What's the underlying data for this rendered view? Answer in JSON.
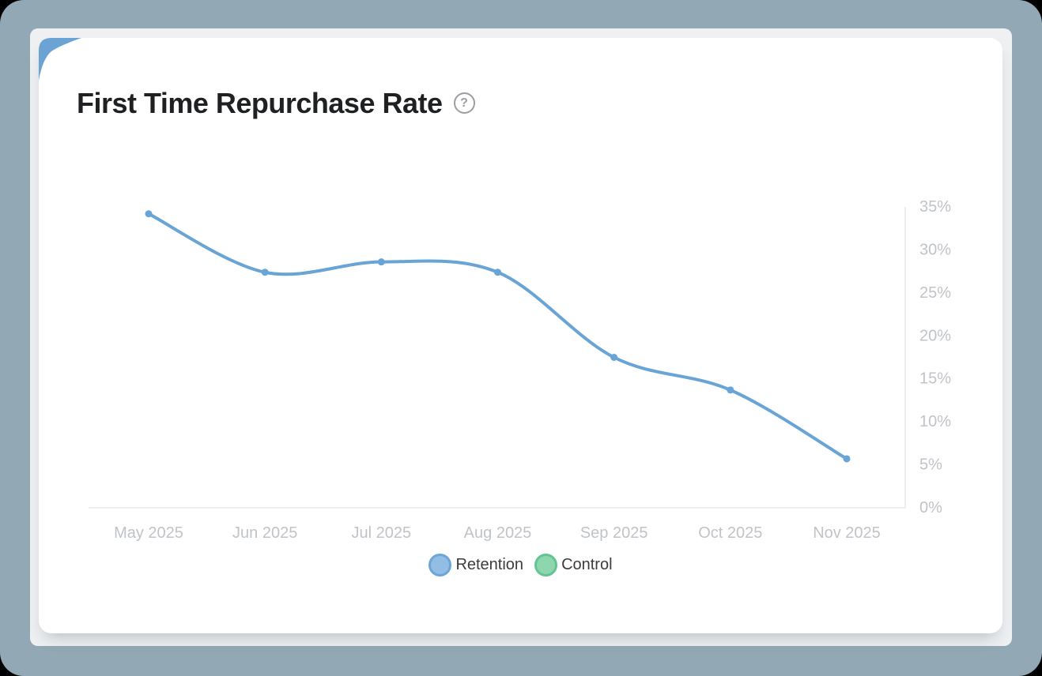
{
  "card": {
    "title": "First Time Repurchase Rate",
    "help_glyph": "?"
  },
  "colors": {
    "outer_background": "#93a8b5",
    "frame_background": "#eef0f2",
    "card_background": "#ffffff",
    "corner_fold": "#6ba4d4",
    "title_text": "#1f2022",
    "help_icon": "#9b9ea1",
    "axis_line": "#dcdcdc",
    "tick_label": "#c0c3c7",
    "legend_text": "#3a3c3e"
  },
  "chart_data": {
    "type": "line",
    "title": "First Time Repurchase Rate",
    "x": [
      "May 2025",
      "Jun 2025",
      "Jul 2025",
      "Aug 2025",
      "Sep 2025",
      "Oct 2025",
      "Nov 2025"
    ],
    "series": [
      {
        "name": "Retention",
        "color": "#68a4d5",
        "swatch_fill": "#92bde4",
        "swatch_ring": "#6ca6d8",
        "values": [
          34.2,
          27.4,
          28.6,
          27.4,
          17.5,
          13.7,
          5.7
        ],
        "visible": true
      },
      {
        "name": "Control",
        "color": "#62c492",
        "swatch_fill": "#8ed7ae",
        "swatch_ring": "#62c492",
        "values": [],
        "visible": false
      }
    ],
    "ylabel": "",
    "xlabel": "",
    "ylim": [
      0,
      35
    ],
    "y_tick_step": 5,
    "y_tick_labels": [
      "0%",
      "5%",
      "10%",
      "15%",
      "20%",
      "25%",
      "30%",
      "35%"
    ],
    "y_axis_side": "right",
    "grid": false,
    "legend_position": "bottom",
    "smooth": true
  }
}
